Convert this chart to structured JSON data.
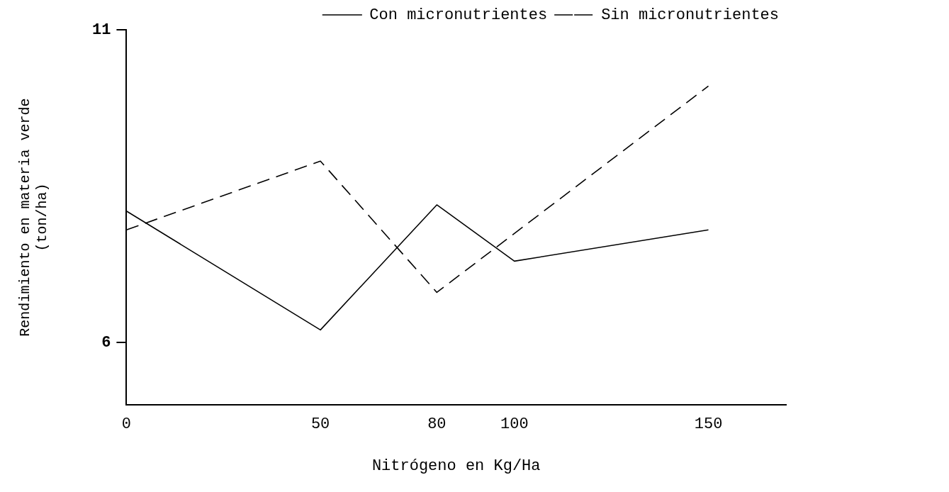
{
  "chart_data": {
    "type": "line",
    "xlabel": "Nitrógeno en Kg/Ha",
    "ylabel": "Rendimiento en materia verde\n(ton/ha)",
    "xlim": [
      0,
      170
    ],
    "xticks": [
      0,
      50,
      80,
      100,
      150
    ],
    "ylim": [
      5,
      11
    ],
    "yticks": [
      6,
      11
    ],
    "grid": false,
    "legend": "top right",
    "marker": "none",
    "series": [
      {
        "name": "Con micronutrientes",
        "color": "#000000",
        "line_style": "solid",
        "x": [
          0,
          50,
          80,
          100,
          150
        ],
        "values": [
          8.1,
          6.2,
          8.2,
          7.3,
          7.8
        ]
      },
      {
        "name": "Sin micronutrientes",
        "color": "#000000",
        "line_style": "dashed",
        "x": [
          0,
          50,
          80,
          150
        ],
        "values": [
          7.8,
          8.9,
          6.8,
          10.1
        ]
      }
    ]
  }
}
